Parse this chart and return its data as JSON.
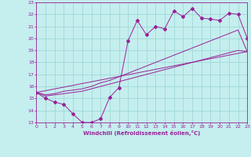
{
  "xlabel": "Windchill (Refroidissement éolien,°C)",
  "xlim": [
    0,
    23
  ],
  "ylim": [
    13,
    23
  ],
  "xticks": [
    0,
    1,
    2,
    3,
    4,
    5,
    6,
    7,
    8,
    9,
    10,
    11,
    12,
    13,
    14,
    15,
    16,
    17,
    18,
    19,
    20,
    21,
    22,
    23
  ],
  "yticks": [
    13,
    14,
    15,
    16,
    17,
    18,
    19,
    20,
    21,
    22,
    23
  ],
  "background_color": "#c5eeee",
  "grid_color": "#9fd8d8",
  "line_color": "#992299",
  "series1_x": [
    0,
    1,
    2,
    3,
    4,
    5,
    6,
    7,
    8,
    9,
    10,
    11,
    12,
    13,
    14,
    15,
    16,
    17,
    18,
    19,
    20,
    21,
    22,
    23
  ],
  "series1_y": [
    15.5,
    15.0,
    14.7,
    14.5,
    13.7,
    13.0,
    13.0,
    13.3,
    15.1,
    15.9,
    19.8,
    21.5,
    20.3,
    21.0,
    20.8,
    22.3,
    21.8,
    22.5,
    21.7,
    21.6,
    21.5,
    22.1,
    22.0,
    20.0
  ],
  "series2_x": [
    0,
    1,
    2,
    3,
    4,
    5,
    6,
    7,
    8,
    9,
    10,
    11,
    12,
    13,
    14,
    15,
    16,
    17,
    18,
    19,
    20,
    21,
    22,
    23
  ],
  "series2_y": [
    15.5,
    15.3,
    15.4,
    15.6,
    15.7,
    15.8,
    16.0,
    16.3,
    16.5,
    16.8,
    17.1,
    17.4,
    17.7,
    18.0,
    18.3,
    18.6,
    18.9,
    19.2,
    19.5,
    19.8,
    20.1,
    20.4,
    20.7,
    18.9
  ],
  "series3_x": [
    0,
    1,
    2,
    3,
    4,
    5,
    6,
    7,
    8,
    9,
    10,
    11,
    12,
    13,
    14,
    15,
    16,
    17,
    18,
    19,
    20,
    21,
    22,
    23
  ],
  "series3_y": [
    15.5,
    15.2,
    15.3,
    15.4,
    15.5,
    15.6,
    15.8,
    16.0,
    16.2,
    16.4,
    16.6,
    16.8,
    17.0,
    17.2,
    17.4,
    17.6,
    17.8,
    18.0,
    18.2,
    18.4,
    18.6,
    18.8,
    19.0,
    18.9
  ],
  "series4_x": [
    0,
    23
  ],
  "series4_y": [
    15.5,
    18.9
  ],
  "markersize": 2.0
}
